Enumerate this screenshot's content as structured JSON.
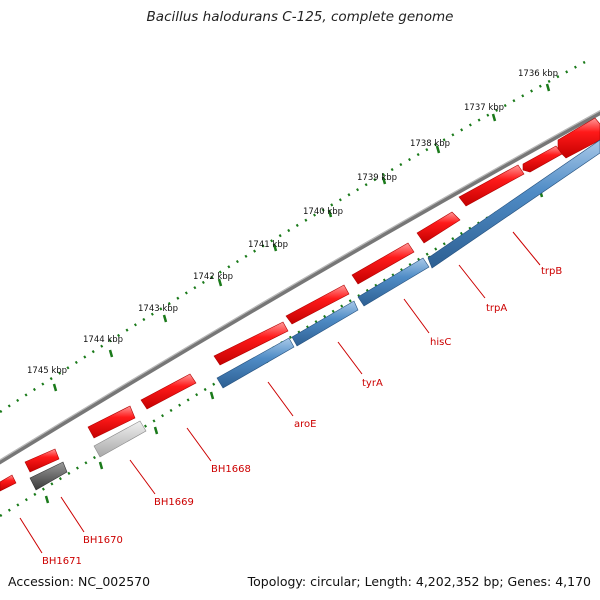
{
  "title": "Bacillus halodurans C-125, complete genome",
  "accession": "Accession: NC_002570",
  "summary": "Topology: circular; Length: 4,202,352 bp; Genes: 4,170",
  "ticks": [
    "1736 kbp",
    "1737 kbp",
    "1738 kbp",
    "1739 kbp",
    "1740 kbp",
    "1741 kbp",
    "1742 kbp",
    "1743 kbp",
    "1744 kbp",
    "1745 kbp"
  ],
  "genes": [
    "trpB",
    "trpA",
    "hisC",
    "tyrA",
    "aroE",
    "BH1668",
    "BH1669",
    "BH1670",
    "BH1671"
  ],
  "colors": {
    "forward": "#ff0000",
    "reverse": "#4a86c0",
    "grey_light": "#bdbdbd",
    "grey_dark": "#555555",
    "backbone": "#7a7a7a",
    "ruler": "#1a7a1a",
    "label": "#cc0000"
  }
}
